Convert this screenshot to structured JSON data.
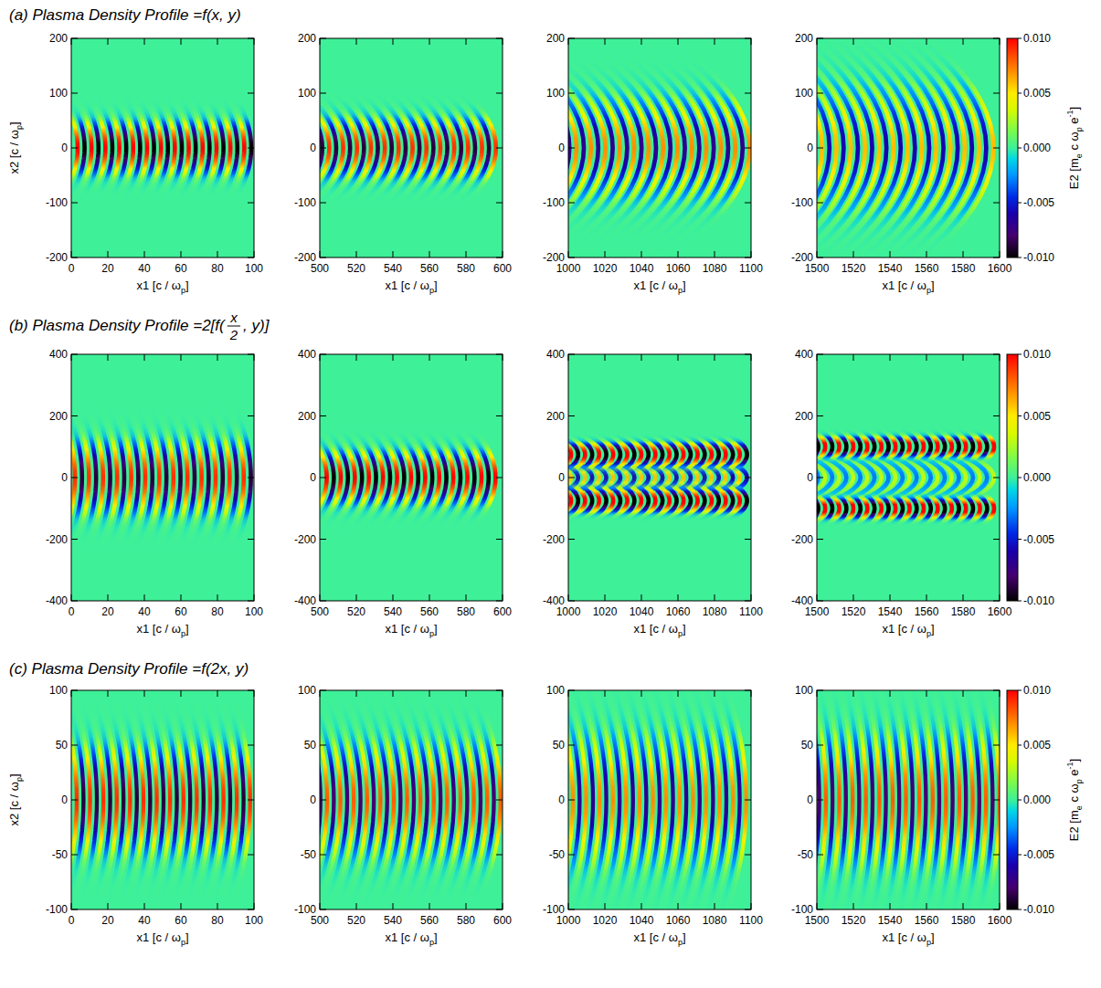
{
  "chart_data": [
    {
      "type": "heatmap",
      "title": "(a) Plasma Density Profile = ",
      "formula": [
        "f(x, y)"
      ],
      "x_label": [
        {
          "text": "x1 [c / ω"
        },
        {
          "text": "p",
          "sub": true
        },
        {
          "text": "]"
        }
      ],
      "y_label": [
        {
          "text": "x2 [c / ω"
        },
        {
          "text": "p",
          "sub": true
        },
        {
          "text": "]"
        }
      ],
      "colorbar": {
        "range": [
          -0.01,
          0.01
        ],
        "ticks": [
          {
            "value": 0.01,
            "label": "0.010"
          },
          {
            "value": 0.005,
            "label": "0.005"
          },
          {
            "value": 0,
            "label": "0.000"
          },
          {
            "value": -0.005,
            "label": "-0.005"
          },
          {
            "value": -0.01,
            "label": "-0.010"
          }
        ],
        "label": [
          {
            "text": "E2 [m"
          },
          {
            "text": "e",
            "sub": true
          },
          {
            "text": " c ω"
          },
          {
            "text": "p",
            "sub": true
          },
          {
            "text": " e"
          },
          {
            "text": "-1",
            "sup": true
          },
          {
            "text": "]"
          }
        ]
      },
      "panels": [
        {
          "xlim": [
            0,
            100
          ],
          "xticks": [
            0,
            20,
            40,
            60,
            80,
            100
          ],
          "ylim": [
            -200,
            200
          ],
          "yticks": [
            -200,
            -100,
            0,
            100,
            200
          ],
          "crests": [
            3.5,
            11.1,
            18.7,
            26.3,
            33.9,
            41.5,
            49.1,
            56.7,
            64.3,
            71.9,
            79.5,
            87.1,
            94.7
          ],
          "troughs": [
            7.3,
            14.9,
            22.5,
            30.1,
            37.7,
            45.3,
            52.9,
            60.5,
            68.1,
            75.7,
            83.3,
            90.9,
            98.5
          ],
          "lobes": [
            {
              "y": 0,
              "width": 45,
              "amplitude": 0.01,
              "bend": -2
            }
          ]
        },
        {
          "xlim": [
            500,
            600
          ],
          "xticks": [
            500,
            520,
            540,
            560,
            580,
            600
          ],
          "ylim": [
            -200,
            200
          ],
          "yticks": [
            -200,
            -100,
            0,
            100,
            200
          ],
          "crests": [
            505.2,
            512.8,
            520.4,
            528.0,
            535.6,
            543.2,
            550.8,
            558.4,
            566.0,
            573.6,
            581.2,
            588.8,
            596.4
          ],
          "troughs": [
            501.4,
            509.0,
            516.6,
            524.2,
            531.8,
            539.4,
            547.0,
            554.6,
            562.2,
            569.8,
            577.4,
            585.0,
            592.6
          ],
          "lobes": [
            {
              "y": 0,
              "width": 50,
              "amplitude": 0.009,
              "bend": -4
            }
          ]
        },
        {
          "xlim": [
            1000,
            1100
          ],
          "xticks": [
            1000,
            1020,
            1040,
            1060,
            1080,
            1100
          ],
          "ylim": [
            -200,
            200
          ],
          "yticks": [
            -200,
            -100,
            0,
            100,
            200
          ],
          "crests": [
            1004.5,
            1012.4,
            1020.3,
            1028.2,
            1036.1,
            1044.0,
            1051.9,
            1059.8,
            1067.7,
            1075.6,
            1083.5,
            1091.4,
            1099.3
          ],
          "troughs": [
            1000.6,
            1008.5,
            1016.4,
            1024.3,
            1032.2,
            1040.1,
            1048.0,
            1055.9,
            1063.8,
            1071.7,
            1079.6,
            1087.5,
            1095.4
          ],
          "lobes": [
            {
              "y": 0,
              "width": 85,
              "amplitude": 0.007,
              "bend": -8
            }
          ]
        },
        {
          "xlim": [
            1500,
            1600
          ],
          "xticks": [
            1500,
            1520,
            1540,
            1560,
            1580,
            1600
          ],
          "ylim": [
            -200,
            200
          ],
          "yticks": [
            -200,
            -100,
            0,
            100,
            200
          ],
          "crests": [
            1503.0,
            1510.8,
            1518.6,
            1526.4,
            1534.2,
            1542.0,
            1549.8,
            1557.6,
            1565.4,
            1573.2,
            1581.0,
            1588.8,
            1596.6
          ],
          "troughs": [
            1506.9,
            1514.7,
            1522.5,
            1530.3,
            1538.1,
            1545.9,
            1553.7,
            1561.5,
            1569.3,
            1577.1,
            1584.9,
            1592.7
          ],
          "lobes": [
            {
              "y": 0,
              "width": 105,
              "amplitude": 0.006,
              "bend": -10
            }
          ]
        }
      ]
    },
    {
      "type": "heatmap",
      "title": "(b) Plasma Density Profile = ",
      "formula": [
        "2[f(",
        {
          "numerator": "x",
          "denominator": "2"
        },
        ", y)]"
      ],
      "x_label": [
        {
          "text": "x1 [c / ω"
        },
        {
          "text": "p",
          "sub": true
        },
        {
          "text": "]"
        }
      ],
      "colorbar": {
        "range": [
          -0.01,
          0.01
        ],
        "ticks": [
          {
            "value": 0.01,
            "label": "0.010"
          },
          {
            "value": 0.005,
            "label": "0.005"
          },
          {
            "value": 0,
            "label": "0.000"
          },
          {
            "value": -0.005,
            "label": "-0.005"
          },
          {
            "value": -0.01,
            "label": "-0.010"
          }
        ]
      },
      "panels": [
        {
          "xlim": [
            0,
            100
          ],
          "xticks": [
            0,
            20,
            40,
            60,
            80,
            100
          ],
          "ylim": [
            -400,
            400
          ],
          "yticks": [
            -400,
            -200,
            0,
            200,
            400
          ],
          "crests": [
            2.0,
            9.7,
            17.4,
            25.1,
            32.8,
            40.5,
            48.2,
            55.9,
            63.6,
            71.3,
            79.0,
            86.7,
            94.4
          ],
          "troughs": [
            5.9,
            13.6,
            21.3,
            29.0,
            36.7,
            44.4,
            52.1,
            59.8,
            67.5,
            75.2,
            82.9,
            90.6,
            98.3
          ],
          "lobes": [
            {
              "y": 0,
              "width": 110,
              "amplitude": 0.009,
              "bend": -2
            }
          ]
        },
        {
          "xlim": [
            500,
            600
          ],
          "xticks": [
            500,
            520,
            540,
            560,
            580,
            600
          ],
          "ylim": [
            -400,
            400
          ],
          "yticks": [
            -400,
            -200,
            0,
            200,
            400
          ],
          "crests": [
            503.8,
            511.5,
            519.2,
            526.9,
            534.6,
            542.3,
            550.0,
            557.7,
            565.4,
            573.1,
            580.8,
            588.5,
            596.2
          ],
          "troughs": [
            507.7,
            515.4,
            523.1,
            530.8,
            538.5,
            546.2,
            553.9,
            561.6,
            569.3,
            577.0,
            584.7,
            592.4
          ],
          "lobes": [
            {
              "y": 0,
              "width": 80,
              "amplitude": 0.01,
              "bend": -3
            }
          ]
        },
        {
          "xlim": [
            1000,
            1100
          ],
          "xticks": [
            1000,
            1020,
            1040,
            1060,
            1080,
            1100
          ],
          "ylim": [
            -400,
            400
          ],
          "yticks": [
            -400,
            -200,
            0,
            200,
            400
          ],
          "crests": [
            1001.5,
            1009.2,
            1016.9,
            1024.6,
            1032.3,
            1040.0,
            1047.7,
            1055.4,
            1063.1,
            1070.8,
            1078.5,
            1086.2,
            1093.9
          ],
          "troughs": [
            1005.4,
            1013.1,
            1020.8,
            1028.5,
            1036.2,
            1043.9,
            1051.6,
            1059.3,
            1067.0,
            1074.7,
            1082.4,
            1090.1,
            1097.8
          ],
          "lobes": [
            {
              "y": 0,
              "width": 40,
              "amplitude": 0.006,
              "bend": -6
            },
            {
              "y": 75,
              "width": 35,
              "amplitude": 0.011,
              "bend": -3
            },
            {
              "y": -75,
              "width": 35,
              "amplitude": 0.011,
              "bend": -3
            }
          ]
        },
        {
          "xlim": [
            1500,
            1600
          ],
          "xticks": [
            1500,
            1520,
            1540,
            1560,
            1580,
            1600
          ],
          "ylim": [
            -400,
            400
          ],
          "yticks": [
            -400,
            -200,
            0,
            200,
            400
          ],
          "crests": [
            1504.6,
            1512.3,
            1520.0,
            1527.7,
            1535.4,
            1543.1,
            1550.8,
            1558.5,
            1566.2,
            1573.9,
            1581.6,
            1589.3,
            1597.0
          ],
          "troughs": [
            1500.8,
            1508.5,
            1516.2,
            1523.9,
            1531.6,
            1539.3,
            1547.0,
            1554.7,
            1562.4,
            1570.1,
            1577.8,
            1585.5,
            1593.2
          ],
          "lobes": [
            {
              "y": 0,
              "width": 60,
              "amplitude": 0.003,
              "bend": -10
            },
            {
              "y": 100,
              "width": 30,
              "amplitude": 0.012,
              "bend": -2
            },
            {
              "y": -100,
              "width": 30,
              "amplitude": 0.012,
              "bend": -2
            }
          ]
        }
      ]
    },
    {
      "type": "heatmap",
      "title": "(c)  Plasma Density Profile = ",
      "formula": [
        "f(2x, y)"
      ],
      "x_label": [
        {
          "text": "x1 [c / ω"
        },
        {
          "text": "p",
          "sub": true
        },
        {
          "text": "]"
        }
      ],
      "y_label": [
        {
          "text": "x2 [c / ω"
        },
        {
          "text": "p",
          "sub": true
        },
        {
          "text": "]"
        }
      ],
      "colorbar": {
        "range": [
          -0.01,
          0.01
        ],
        "ticks": [
          {
            "value": 0.01,
            "label": "0.010"
          },
          {
            "value": 0.005,
            "label": "0.005"
          },
          {
            "value": 0,
            "label": "0.000"
          },
          {
            "value": -0.005,
            "label": "-0.005"
          },
          {
            "value": -0.01,
            "label": "-0.010"
          }
        ],
        "label": [
          {
            "text": "E2 [m"
          },
          {
            "text": "e",
            "sub": true
          },
          {
            "text": " c ω"
          },
          {
            "text": "p",
            "sub": true
          },
          {
            "text": " e"
          },
          {
            "text": "-1",
            "sup": true
          },
          {
            "text": "]"
          }
        ]
      },
      "panels": [
        {
          "xlim": [
            0,
            100
          ],
          "xticks": [
            0,
            20,
            40,
            60,
            80,
            100
          ],
          "ylim": [
            -100,
            100
          ],
          "yticks": [
            -100,
            -50,
            0,
            50,
            100
          ],
          "crests": [
            3.0,
            10.3,
            17.6,
            24.9,
            32.2,
            39.5,
            46.8,
            54.1,
            61.4,
            68.7,
            76.0,
            83.3,
            90.6,
            97.9
          ],
          "troughs": [
            6.7,
            14.0,
            21.3,
            28.6,
            35.9,
            43.2,
            50.5,
            57.8,
            65.1,
            72.4,
            79.7,
            87.0,
            94.3
          ],
          "lobes": [
            {
              "y": 0,
              "width": 45,
              "amplitude": 0.009,
              "bend": -2
            }
          ]
        },
        {
          "xlim": [
            500,
            600
          ],
          "xticks": [
            500,
            520,
            540,
            560,
            580,
            600
          ],
          "ylim": [
            -100,
            100
          ],
          "yticks": [
            -100,
            -50,
            0,
            50,
            100
          ],
          "crests": [
            504.0,
            511.3,
            518.6,
            525.9,
            533.2,
            540.5,
            547.8,
            555.1,
            562.4,
            569.7,
            577.0,
            584.3,
            591.6,
            598.9
          ],
          "troughs": [
            500.4,
            507.7,
            515.0,
            522.3,
            529.6,
            536.9,
            544.2,
            551.5,
            558.8,
            566.1,
            573.4,
            580.7,
            588.0,
            595.3
          ],
          "lobes": [
            {
              "y": 0,
              "width": 48,
              "amplitude": 0.008,
              "bend": -3
            }
          ]
        },
        {
          "xlim": [
            1000,
            1100
          ],
          "xticks": [
            1000,
            1020,
            1040,
            1060,
            1080,
            1100
          ],
          "ylim": [
            -100,
            100
          ],
          "yticks": [
            -100,
            -50,
            0,
            50,
            100
          ],
          "crests": [
            1002.5,
            1009.8,
            1017.1,
            1024.4,
            1031.7,
            1039.0,
            1046.3,
            1053.6,
            1060.9,
            1068.2,
            1075.5,
            1082.8,
            1090.1,
            1097.4
          ],
          "troughs": [
            1006.2,
            1013.5,
            1020.8,
            1028.1,
            1035.4,
            1042.7,
            1050.0,
            1057.3,
            1064.6,
            1071.9,
            1079.2,
            1086.5,
            1093.8
          ],
          "lobes": [
            {
              "y": 0,
              "width": 55,
              "amplitude": 0.007,
              "bend": -3
            }
          ]
        },
        {
          "xlim": [
            1500,
            1600
          ],
          "xticks": [
            1500,
            1520,
            1540,
            1560,
            1580,
            1600
          ],
          "ylim": [
            -100,
            100
          ],
          "yticks": [
            -100,
            -50,
            0,
            50,
            100
          ],
          "crests": [
            1505.0,
            1512.3,
            1519.6,
            1526.9,
            1534.2,
            1541.5,
            1548.8,
            1556.1,
            1563.4,
            1570.7,
            1578.0,
            1585.3,
            1592.6,
            1599.9
          ],
          "troughs": [
            1501.3,
            1508.6,
            1515.9,
            1523.2,
            1530.5,
            1537.8,
            1545.1,
            1552.4,
            1559.7,
            1567.0,
            1574.3,
            1581.6,
            1588.9,
            1596.2
          ],
          "lobes": [
            {
              "y": 0,
              "width": 55,
              "amplitude": 0.008,
              "bend": -2
            }
          ]
        }
      ]
    }
  ]
}
